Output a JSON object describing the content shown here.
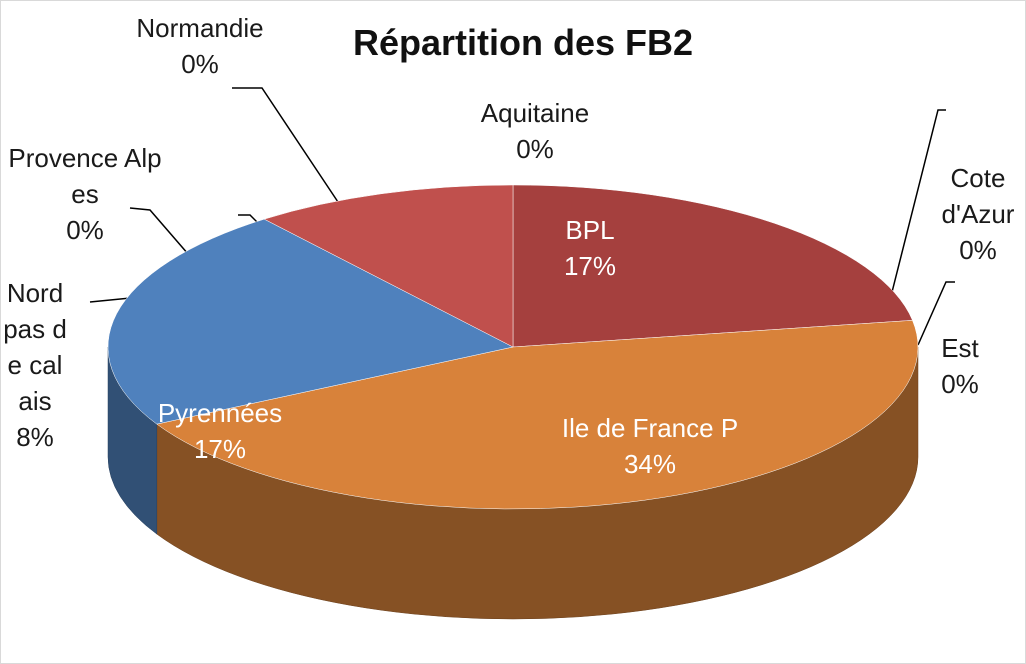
{
  "chart_data": {
    "type": "pie",
    "title": "Répartition des FB2",
    "categories": [
      "BPL",
      "Cote d'Azur",
      "Est",
      "Ile de France P",
      "Pyrennées",
      "Nord pas de calais",
      "Provence Alpes",
      "Normandie",
      "Aquitaine"
    ],
    "values": [
      17,
      0,
      0,
      34,
      17,
      8,
      0,
      0,
      0
    ],
    "value_labels": [
      "17%",
      "0%",
      "0%",
      "34%",
      "17%",
      "8%",
      "0%",
      "0%",
      "0%"
    ],
    "colors": [
      "#a5403e",
      "#8aa64e",
      "#6f9a3c",
      "#d8823a",
      "#4f81bd",
      "#c0504d",
      "#8064a2",
      "#4bacc6",
      "#f79646"
    ]
  }
}
